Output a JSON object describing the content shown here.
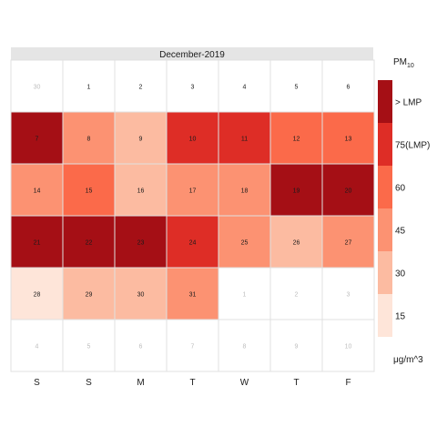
{
  "chart_data": {
    "type": "heatmap",
    "title": "December-2019",
    "weekday_labels": [
      "S",
      "S",
      "M",
      "T",
      "W",
      "T",
      "F"
    ],
    "weeks": [
      [
        {
          "day": "30",
          "in_month": false
        },
        {
          "day": "1",
          "in_month": true,
          "level": 0
        },
        {
          "day": "2",
          "in_month": true,
          "level": 0
        },
        {
          "day": "3",
          "in_month": true,
          "level": 0
        },
        {
          "day": "4",
          "in_month": true,
          "level": 0
        },
        {
          "day": "5",
          "in_month": true,
          "level": 0
        },
        {
          "day": "6",
          "in_month": true,
          "level": 0
        }
      ],
      [
        {
          "day": "7",
          "in_month": true,
          "level": 6
        },
        {
          "day": "8",
          "in_month": true,
          "level": 3
        },
        {
          "day": "9",
          "in_month": true,
          "level": 2
        },
        {
          "day": "10",
          "in_month": true,
          "level": 5
        },
        {
          "day": "11",
          "in_month": true,
          "level": 5
        },
        {
          "day": "12",
          "in_month": true,
          "level": 4
        },
        {
          "day": "13",
          "in_month": true,
          "level": 4
        }
      ],
      [
        {
          "day": "14",
          "in_month": true,
          "level": 3
        },
        {
          "day": "15",
          "in_month": true,
          "level": 4
        },
        {
          "day": "16",
          "in_month": true,
          "level": 2
        },
        {
          "day": "17",
          "in_month": true,
          "level": 3
        },
        {
          "day": "18",
          "in_month": true,
          "level": 3
        },
        {
          "day": "19",
          "in_month": true,
          "level": 6
        },
        {
          "day": "20",
          "in_month": true,
          "level": 6
        }
      ],
      [
        {
          "day": "21",
          "in_month": true,
          "level": 6
        },
        {
          "day": "22",
          "in_month": true,
          "level": 6
        },
        {
          "day": "23",
          "in_month": true,
          "level": 6
        },
        {
          "day": "24",
          "in_month": true,
          "level": 5
        },
        {
          "day": "25",
          "in_month": true,
          "level": 3
        },
        {
          "day": "26",
          "in_month": true,
          "level": 2
        },
        {
          "day": "27",
          "in_month": true,
          "level": 3
        }
      ],
      [
        {
          "day": "28",
          "in_month": true,
          "level": 1
        },
        {
          "day": "29",
          "in_month": true,
          "level": 2
        },
        {
          "day": "30",
          "in_month": true,
          "level": 2
        },
        {
          "day": "31",
          "in_month": true,
          "level": 3
        },
        {
          "day": "1",
          "in_month": false
        },
        {
          "day": "2",
          "in_month": false
        },
        {
          "day": "3",
          "in_month": false
        }
      ],
      [
        {
          "day": "4",
          "in_month": false
        },
        {
          "day": "5",
          "in_month": false
        },
        {
          "day": "6",
          "in_month": false
        },
        {
          "day": "7",
          "in_month": false
        },
        {
          "day": "8",
          "in_month": false
        },
        {
          "day": "9",
          "in_month": false
        },
        {
          "day": "10",
          "in_month": false
        }
      ]
    ],
    "legend": {
      "title_main": "PM",
      "title_sub": "10",
      "unit": "μg/m^3",
      "labels": [
        "15",
        "30",
        "45",
        "60",
        "75(LMP)",
        "> LMP"
      ],
      "colors": [
        "#fee5d9",
        "#fcbba1",
        "#fc9272",
        "#fb6a4a",
        "#de2d26",
        "#a50f15"
      ]
    },
    "colors": {
      "no_data": "#ffffff",
      "out_of_month_text": "#bdbdbd",
      "in_month_text": "#1a1a1a",
      "title_strip": "#e5e5e5",
      "grid_line": "#e0e0e0"
    }
  }
}
